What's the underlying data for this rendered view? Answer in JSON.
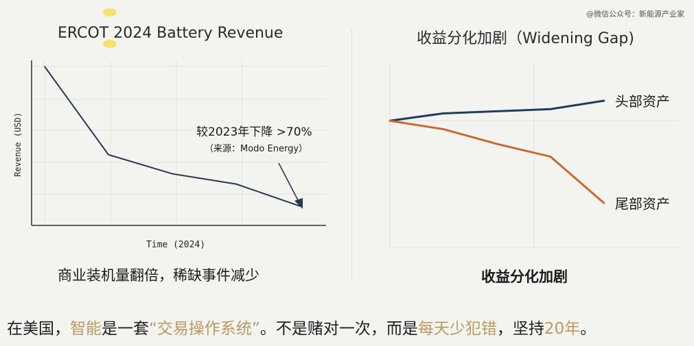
{
  "watermark": "@微信公众号：新能源产业家",
  "chart_data": [
    {
      "type": "line",
      "title": "ERCOT 2024 Battery Revenue",
      "xlabel": "Time (2024)",
      "ylabel": "Revenue (USD)",
      "x": [
        0,
        1,
        2,
        3,
        4
      ],
      "series": [
        {
          "values": [
            100,
            40,
            27,
            20,
            5
          ],
          "color": "#26384f"
        }
      ],
      "xlim": [
        -0.2,
        4.4
      ],
      "ylim": [
        -8,
        104
      ],
      "grid": true,
      "annotation": {
        "text": "较2023年下降 >70%",
        "subtext": "（来源：Modo Energy）",
        "arrow": "down-right"
      },
      "caption": "商业装机量翻倍，稀缺事件减少"
    },
    {
      "type": "line",
      "title": "收益分化加剧（Widening Gap)",
      "x": [
        0,
        1,
        2,
        3,
        4
      ],
      "series": [
        {
          "name": "头部资产",
          "values": [
            0,
            3.5,
            4.5,
            5.5,
            9.5
          ],
          "color": "#1f3b5e"
        },
        {
          "name": "尾部资产",
          "values": [
            0,
            -4,
            -11,
            -17,
            -39
          ],
          "color": "#c9682e"
        }
      ],
      "xlim": [
        0,
        5.4
      ],
      "ylim": [
        -60,
        28
      ],
      "grid": true,
      "caption": "收益分化加剧"
    }
  ],
  "bottom_line": {
    "part1": "在美国，",
    "part2": "智能",
    "part3": "是一套",
    "part4": "“交易操作系统”",
    "part5": "。不是赌对一次，而是",
    "part6": "每天少犯错",
    "part7": "，坚持",
    "part8": "20年",
    "part9": "。"
  }
}
